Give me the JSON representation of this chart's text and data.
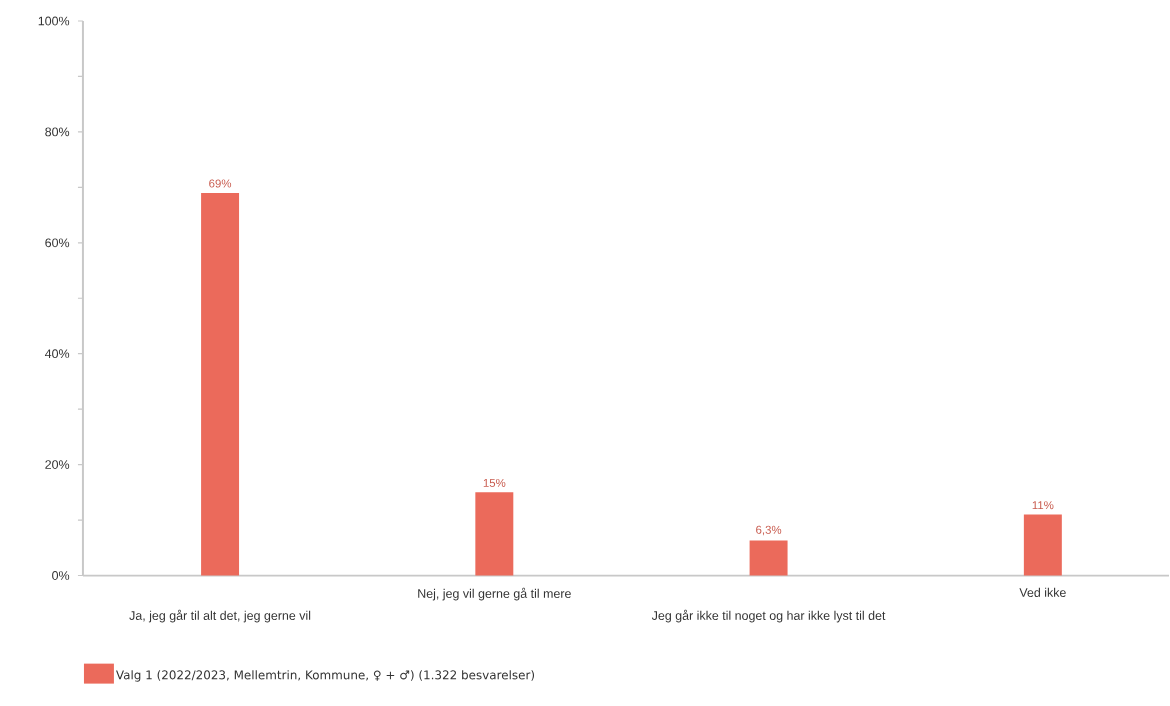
{
  "chart_data": {
    "type": "bar",
    "categories": [
      "Ja, jeg går til alt det, jeg gerne vil",
      "Nej, jeg vil gerne gå til mere",
      "Jeg går ikke til noget og har ikke lyst til det",
      "Ved ikke"
    ],
    "series": [
      {
        "name": "Valg 1 (2022/2023, Mellemtrin, Kommune, ♀ + ♂) (1.322 besvarelser)",
        "color": "#eb6a5b",
        "values": [
          69,
          15,
          6.3,
          11
        ],
        "value_labels": [
          "69%",
          "15%",
          "6,3%",
          "11%"
        ]
      }
    ],
    "ylim": [
      0,
      100
    ],
    "yticks": [
      {
        "value": 0,
        "label": "0%"
      },
      {
        "value": 10,
        "label": null
      },
      {
        "value": 20,
        "label": "20%"
      },
      {
        "value": 30,
        "label": null
      },
      {
        "value": 40,
        "label": "40%"
      },
      {
        "value": 50,
        "label": null
      },
      {
        "value": 60,
        "label": "60%"
      },
      {
        "value": 70,
        "label": null
      },
      {
        "value": 80,
        "label": "80%"
      },
      {
        "value": 90,
        "label": null
      },
      {
        "value": 100,
        "label": "100%"
      }
    ],
    "legend": "bottom left"
  }
}
